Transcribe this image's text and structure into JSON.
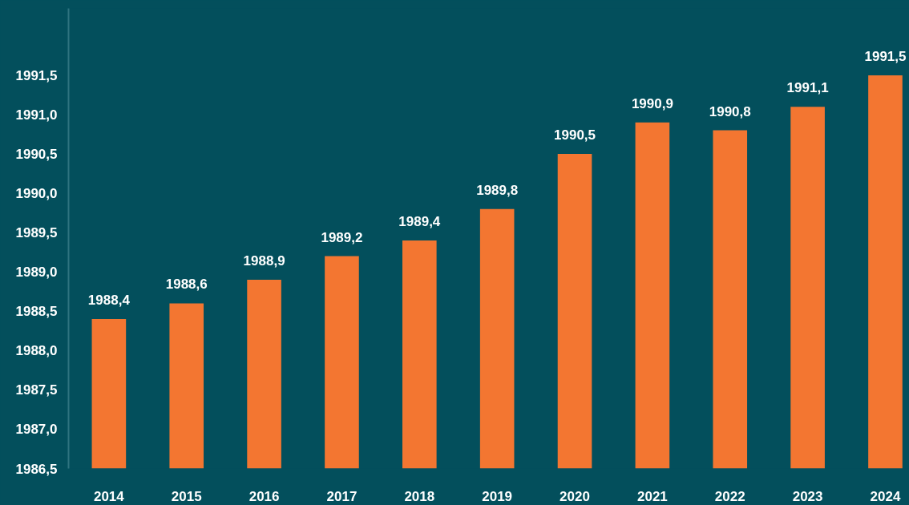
{
  "chart_data": {
    "type": "bar",
    "categories": [
      "2014",
      "2015",
      "2016",
      "2017",
      "2018",
      "2019",
      "2020",
      "2021",
      "2022",
      "2023",
      "2024"
    ],
    "values": [
      1988.4,
      1988.6,
      1988.9,
      1989.2,
      1989.4,
      1989.8,
      1990.5,
      1990.9,
      1990.8,
      1991.1,
      1991.5
    ],
    "color": "#f37631",
    "ylim": [
      1986.5,
      1992.35
    ],
    "yticks": [
      {
        "value": 1986.5,
        "label": "1986,5"
      },
      {
        "value": 1987,
        "label": "1987,0"
      },
      {
        "value": 1987.5,
        "label": "1987,5"
      },
      {
        "value": 1988,
        "label": "1988,0"
      },
      {
        "value": 1988.5,
        "label": "1988,5"
      },
      {
        "value": 1989,
        "label": "1989,0"
      },
      {
        "value": 1989.5,
        "label": "1989,5"
      },
      {
        "value": 1990,
        "label": "1990,0"
      },
      {
        "value": 1990.5,
        "label": "1990,5"
      },
      {
        "value": 1991,
        "label": "1991,0"
      },
      {
        "value": 1991.5,
        "label": "1991,5"
      }
    ],
    "value_labels": [
      "1988,4",
      "1988,6",
      "1988,9",
      "1989,2",
      "1989,4",
      "1989,8",
      "1990,5",
      "1990,9",
      "1990,8",
      "1991,1",
      "1991,5"
    ],
    "grid": false
  }
}
